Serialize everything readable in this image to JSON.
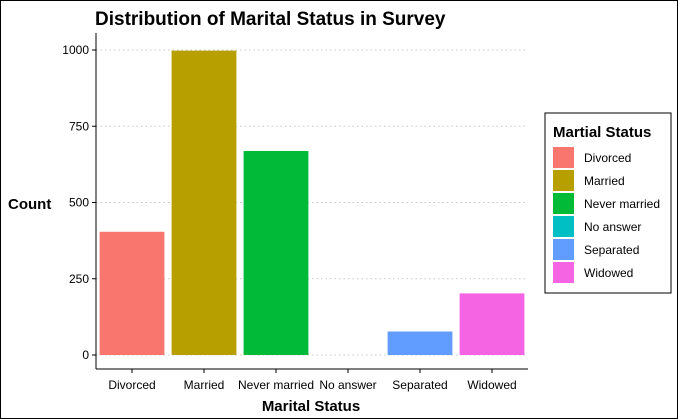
{
  "chart_data": {
    "type": "bar",
    "title": "Distribution of Marital Status in Survey",
    "xlabel": "Marital Status",
    "ylabel": "Count",
    "categories": [
      "Divorced",
      "Married",
      "Never married",
      "No answer",
      "Separated",
      "Widowed"
    ],
    "values": [
      404,
      998,
      669,
      0,
      77,
      202
    ],
    "colors": [
      "#F8766D",
      "#B79F00",
      "#00BA38",
      "#00BFC4",
      "#619CFF",
      "#F564E3"
    ],
    "ylim": [
      0,
      1050
    ],
    "yticks": [
      0,
      250,
      500,
      750,
      1000
    ],
    "grid": true,
    "legend": {
      "title": "Martial Status",
      "placement": "right",
      "entries": [
        "Divorced",
        "Married",
        "Never married",
        "No answer",
        "Separated",
        "Widowed"
      ]
    }
  }
}
